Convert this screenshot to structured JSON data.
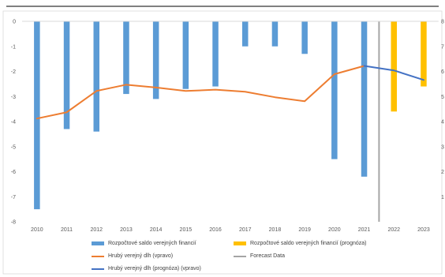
{
  "chart_data": {
    "type": "bar",
    "title": "",
    "xlabel": "",
    "ylabel": "",
    "categories": [
      "2010",
      "2011",
      "2012",
      "2013",
      "2014",
      "2015",
      "2016",
      "2017",
      "2018",
      "2019",
      "2020",
      "2021",
      "2022",
      "2023"
    ],
    "ylim_left": [
      -8,
      0
    ],
    "y_ticks_left": [
      "0",
      "-1",
      "-2",
      "-3",
      "-4",
      "-5",
      "-6",
      "-7",
      "-8"
    ],
    "ylim_right": [
      0,
      80
    ],
    "y_ticks_right": [
      "8",
      "7",
      "6",
      "5",
      "4",
      "3",
      "2",
      "1",
      ""
    ],
    "grid": false,
    "legend_position": "bottom",
    "forecast_divider_after": "2021",
    "series": [
      {
        "name": "Rozpočtové saldo verejných financií",
        "type": "bar",
        "axis": "left",
        "color": "#5B9BD5",
        "x": [
          "2010",
          "2011",
          "2012",
          "2013",
          "2014",
          "2015",
          "2016",
          "2017",
          "2018",
          "2019",
          "2020",
          "2021"
        ],
        "values": [
          -7.5,
          -4.3,
          -4.4,
          -2.9,
          -3.1,
          -2.7,
          -2.6,
          -1.0,
          -1.0,
          -1.3,
          -5.5,
          -6.2
        ]
      },
      {
        "name": "Rozpočtové saldo verejných financií (prognóza)",
        "type": "bar",
        "axis": "left",
        "color": "#FFC000",
        "x": [
          "2022",
          "2023"
        ],
        "values": [
          -3.6,
          -2.6
        ]
      },
      {
        "name": "Hrubý verejný dlh (vpravo)",
        "type": "line",
        "axis": "right",
        "color": "#ED7D31",
        "x": [
          "2010",
          "2011",
          "2012",
          "2013",
          "2014",
          "2015",
          "2016",
          "2017",
          "2018",
          "2019",
          "2020",
          "2021"
        ],
        "values": [
          41.2,
          43.7,
          52.2,
          54.7,
          53.6,
          52.2,
          52.7,
          51.9,
          49.7,
          48.1,
          58.9,
          62.2
        ]
      },
      {
        "name": "Forecast Data",
        "type": "divider",
        "color": "#A5A5A5"
      },
      {
        "name": "Hrubý verejný dlh (prognóza) (vpravo)",
        "type": "line",
        "axis": "right",
        "color": "#4472C4",
        "x": [
          "2021",
          "2022",
          "2023"
        ],
        "values": [
          62.2,
          60.4,
          56.6
        ]
      }
    ]
  }
}
